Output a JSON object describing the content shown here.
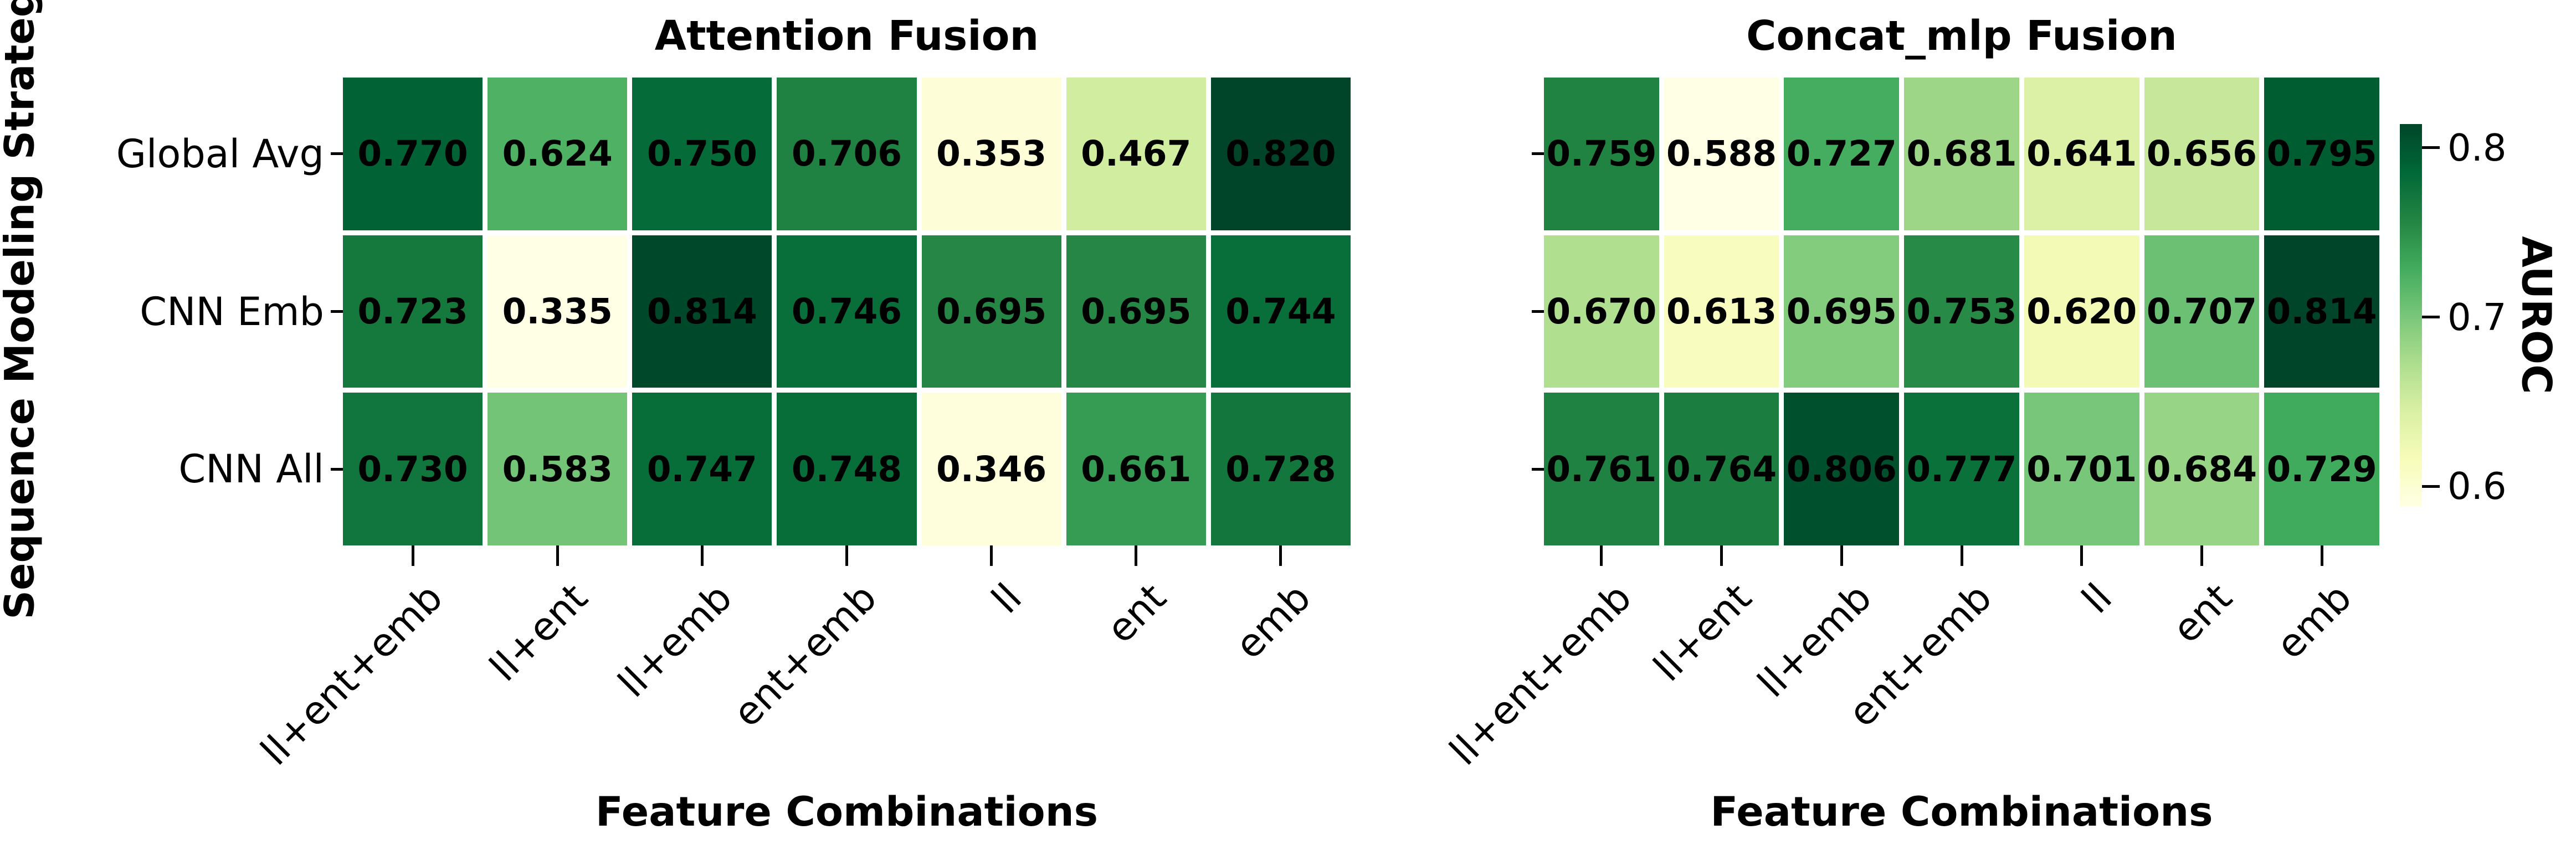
{
  "shared": {
    "ylabel": "Sequence Modeling Strategy",
    "colorbar": {
      "label": "AUROC",
      "tick_labels": [
        "0.8",
        "0.7",
        "0.6"
      ],
      "tick_values": [
        0.8,
        0.7,
        0.6
      ],
      "range_min": 0.588,
      "range_max": 0.814,
      "colormap": "YlGn"
    }
  },
  "chart_data": [
    {
      "type": "heatmap",
      "title": "Attention Fusion",
      "xlabel": "Feature Combinations",
      "x_categories": [
        "ll+ent+emb",
        "ll+ent",
        "ll+emb",
        "ent+emb",
        "ll",
        "ent",
        "emb"
      ],
      "y_categories": [
        "Global Avg",
        "CNN Emb",
        "CNN All"
      ],
      "show_y_labels": true,
      "values": [
        [
          0.77,
          0.624,
          0.75,
          0.706,
          0.353,
          0.467,
          0.82
        ],
        [
          0.723,
          0.335,
          0.814,
          0.746,
          0.695,
          0.695,
          0.744
        ],
        [
          0.73,
          0.583,
          0.747,
          0.748,
          0.346,
          0.661,
          0.728
        ]
      ],
      "annot_decimals": 3,
      "colormap": "YlGn",
      "vmin": 0.335,
      "vmax": 0.82,
      "grid": false,
      "legend_position": "none"
    },
    {
      "type": "heatmap",
      "title": "Concat_mlp Fusion",
      "xlabel": "Feature Combinations",
      "x_categories": [
        "ll+ent+emb",
        "ll+ent",
        "ll+emb",
        "ent+emb",
        "ll",
        "ent",
        "emb"
      ],
      "y_categories": [
        "Global Avg",
        "CNN Emb",
        "CNN All"
      ],
      "show_y_labels": false,
      "values": [
        [
          0.759,
          0.588,
          0.727,
          0.681,
          0.641,
          0.656,
          0.795
        ],
        [
          0.67,
          0.613,
          0.695,
          0.753,
          0.62,
          0.707,
          0.814
        ],
        [
          0.761,
          0.764,
          0.806,
          0.777,
          0.701,
          0.684,
          0.729
        ]
      ],
      "annot_decimals": 3,
      "colormap": "YlGn",
      "vmin": 0.588,
      "vmax": 0.814,
      "grid": false,
      "legend_position": "colorbar-right"
    }
  ]
}
